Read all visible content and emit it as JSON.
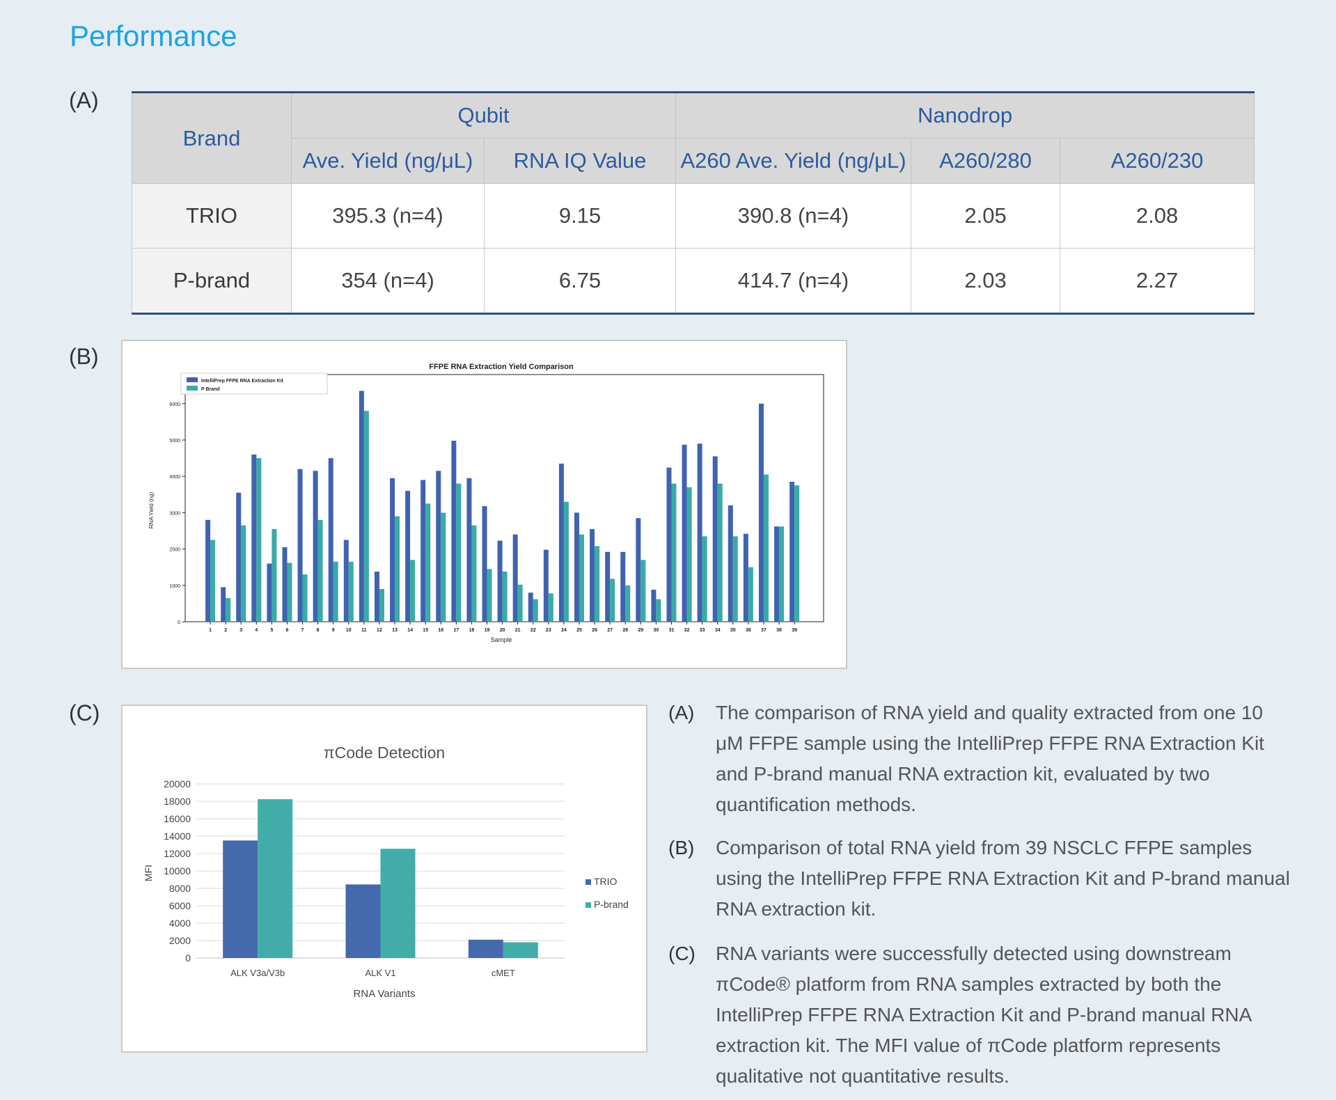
{
  "title": "Performance",
  "panel_labels": {
    "a": "(A)",
    "b": "(B)",
    "c": "(C)"
  },
  "table": {
    "brand_header": "Brand",
    "group_qubit": "Qubit",
    "group_nanodrop": "Nanodrop",
    "columns": [
      "Ave. Yield (ng/μL)",
      "RNA IQ Value",
      "A260 Ave. Yield (ng/μL)",
      "A260/280",
      "A260/230"
    ],
    "rows": [
      {
        "brand": "TRIO",
        "cells": [
          "395.3 (n=4)",
          "9.15",
          "390.8 (n=4)",
          "2.05",
          "2.08"
        ]
      },
      {
        "brand": "P-brand",
        "cells": [
          "354 (n=4)",
          "6.75",
          "414.7 (n=4)",
          "2.03",
          "2.27"
        ]
      }
    ]
  },
  "chart_data": [
    {
      "type": "bar",
      "title": "FFPE RNA Extraction Yield Comparison",
      "xlabel": "Sample",
      "ylabel": "RNA Yield (ng)",
      "ylim": [
        0,
        6800
      ],
      "yticks": [
        0,
        1000,
        2000,
        3000,
        4000,
        5000,
        6000
      ],
      "legend_position": "top-left",
      "categories": [
        "1",
        "2",
        "3",
        "4",
        "5",
        "6",
        "7",
        "8",
        "9",
        "10",
        "11",
        "12",
        "13",
        "14",
        "15",
        "16",
        "17",
        "18",
        "19",
        "20",
        "21",
        "22",
        "23",
        "24",
        "25",
        "26",
        "27",
        "28",
        "29",
        "30",
        "31",
        "32",
        "33",
        "34",
        "35",
        "36",
        "37",
        "38",
        "39"
      ],
      "series": [
        {
          "name": "IntelliPrep FFPE RNA Extraction Kit",
          "color": "#3f63b0",
          "values": [
            2800,
            950,
            3550,
            4600,
            1600,
            2050,
            4200,
            4150,
            4500,
            2250,
            6350,
            1380,
            3950,
            3600,
            3900,
            4150,
            4980,
            3950,
            3180,
            2230,
            2400,
            800,
            1980,
            4350,
            3000,
            2550,
            1920,
            1920,
            2850,
            880,
            4240,
            4870,
            4900,
            4550,
            3200,
            2420,
            6000,
            2620,
            3850
          ]
        },
        {
          "name": "P Brand",
          "color": "#3aaba6",
          "values": [
            2250,
            650,
            2650,
            4500,
            2550,
            1620,
            1300,
            2800,
            1650,
            1650,
            5800,
            900,
            2900,
            1700,
            3250,
            3000,
            3800,
            2650,
            1450,
            1380,
            1020,
            620,
            780,
            3300,
            2400,
            2080,
            1180,
            1000,
            1700,
            620,
            3800,
            3700,
            2350,
            3800,
            2350,
            1500,
            4050,
            2620,
            3750
          ]
        }
      ]
    },
    {
      "type": "bar",
      "title": "πCode Detection",
      "xlabel": "RNA Variants",
      "ylabel": "MFI",
      "ylim": [
        0,
        20000
      ],
      "yticks": [
        0,
        2000,
        4000,
        6000,
        8000,
        10000,
        12000,
        14000,
        16000,
        18000,
        20000
      ],
      "legend_position": "right",
      "categories": [
        "ALK V3a/V3b",
        "ALK V1",
        "cMET"
      ],
      "series": [
        {
          "name": "TRIO",
          "color": "#4569ad",
          "values": [
            13500,
            8450,
            2100
          ]
        },
        {
          "name": "P-brand",
          "color": "#42ada8",
          "values": [
            18250,
            12550,
            1800
          ]
        }
      ]
    }
  ],
  "captions": [
    {
      "label": "(A)",
      "text": "The comparison of RNA yield and quality extracted from one 10 μM FFPE sample using the IntelliPrep FFPE RNA Extraction Kit and P-brand manual RNA extraction kit, evaluated by two quantification methods."
    },
    {
      "label": "(B)",
      "text": "Comparison of total RNA yield from 39 NSCLC FFPE samples using the IntelliPrep FFPE RNA Extraction Kit and P-brand manual RNA extraction kit."
    },
    {
      "label": "(C)",
      "text": "RNA variants were successfully detected using downstream πCode® platform from RNA samples extracted by both the IntelliPrep FFPE RNA Extraction Kit and P-brand manual RNA extraction kit. The MFI value of πCode platform represents qualitative not quantitative results."
    }
  ]
}
